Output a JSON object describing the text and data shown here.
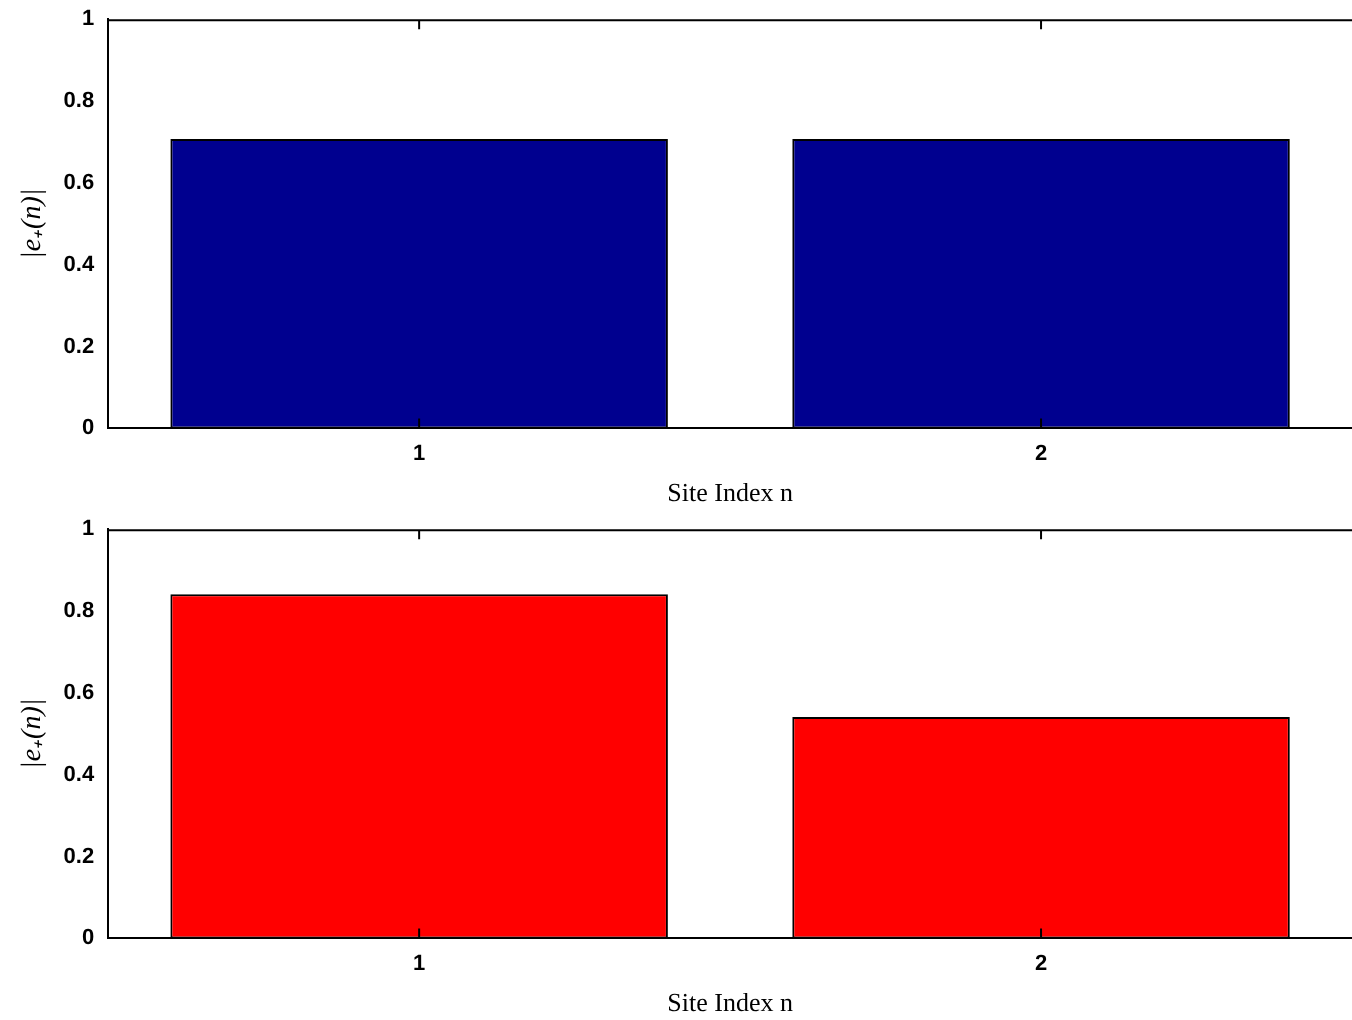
{
  "chart_data": [
    {
      "type": "bar",
      "categories": [
        "1",
        "2"
      ],
      "xlabel": "Site Index n",
      "ylabel": "|e₊(n)|",
      "series": [
        {
          "color": "#00008f",
          "values": [
            0.707,
            0.707
          ]
        }
      ],
      "ylim": [
        0,
        1
      ],
      "yticks": [
        0,
        0.2,
        0.4,
        0.6,
        0.8,
        1
      ],
      "grid": false,
      "legend": false
    },
    {
      "type": "bar",
      "categories": [
        "1",
        "2"
      ],
      "xlabel": "Site Index n",
      "ylabel": "|e₊(n)|",
      "series": [
        {
          "color": "#ff0000",
          "values": [
            0.841,
            0.541
          ]
        }
      ],
      "ylim": [
        0,
        1
      ],
      "yticks": [
        0,
        0.2,
        0.4,
        0.6,
        0.8,
        1
      ],
      "grid": false,
      "legend": false
    }
  ]
}
